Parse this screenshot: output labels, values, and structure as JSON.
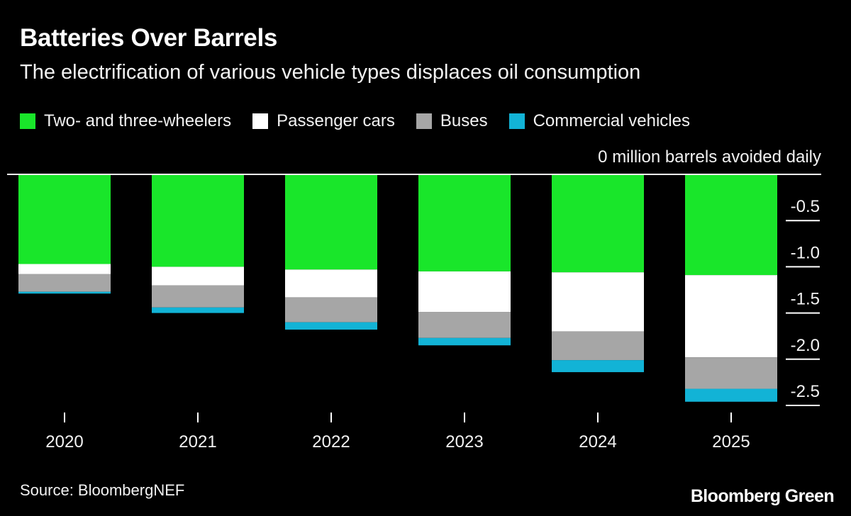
{
  "title": "Batteries Over Barrels",
  "subtitle": "The electrification of various vehicle types displaces oil consumption",
  "source": "Source: BloombergNEF",
  "brand": "Bloomberg Green",
  "colors": {
    "two_three_wheelers": "#19e62a",
    "passenger_cars": "#ffffff",
    "buses": "#a6a6a6",
    "commercial_vehicles": "#12b3d6",
    "background": "#000000"
  },
  "chart_data": {
    "type": "bar",
    "stacked": true,
    "categories": [
      "2020",
      "2021",
      "2022",
      "2023",
      "2024",
      "2025"
    ],
    "series": [
      {
        "name": "Two- and three-wheelers",
        "color_key": "two_three_wheelers",
        "values": [
          -0.97,
          -1.0,
          -1.03,
          -1.05,
          -1.06,
          -1.09
        ]
      },
      {
        "name": "Passenger cars",
        "color_key": "passenger_cars",
        "values": [
          -0.11,
          -0.2,
          -0.3,
          -0.44,
          -0.64,
          -0.89
        ]
      },
      {
        "name": "Buses",
        "color_key": "buses",
        "values": [
          -0.19,
          -0.24,
          -0.27,
          -0.28,
          -0.31,
          -0.34
        ]
      },
      {
        "name": "Commercial vehicles",
        "color_key": "commercial_vehicles",
        "values": [
          -0.02,
          -0.06,
          -0.08,
          -0.08,
          -0.13,
          -0.14
        ]
      }
    ],
    "yaxis": {
      "unit_label": "0 million barrels avoided daily",
      "ticks": [
        0,
        -0.5,
        -1.0,
        -1.5,
        -2.0,
        -2.5
      ],
      "tick_labels": [
        "",
        "-0.5",
        "-1.0",
        "-1.5",
        "-2.0",
        "-2.5"
      ],
      "range": [
        -2.5,
        0
      ],
      "position": "right"
    },
    "legend_position": "top-left",
    "grid": false
  }
}
